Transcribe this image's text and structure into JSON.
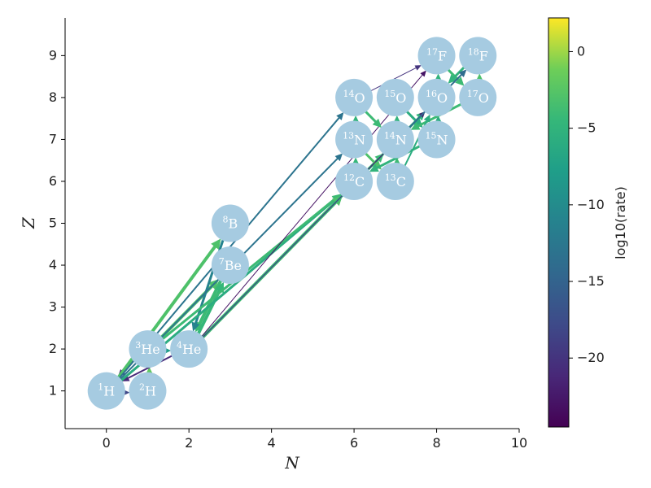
{
  "chart_data": {
    "type": "network",
    "xlabel": "N",
    "ylabel": "Z",
    "xlim": [
      -1,
      10
    ],
    "ylim": [
      0.1,
      9.9
    ],
    "xticks": [
      0,
      2,
      4,
      6,
      8,
      10
    ],
    "yticks": [
      1,
      2,
      3,
      4,
      5,
      6,
      7,
      8,
      9
    ],
    "colorbar": {
      "label": "log10(rate)",
      "range": [
        -24.5,
        2.2
      ],
      "ticks": [
        0,
        -5,
        -10,
        -15,
        -20
      ]
    },
    "node_color": "#a6cbe1",
    "nuclei": [
      {
        "id": "p",
        "A": "1",
        "el": "H",
        "N": 0,
        "Z": 1
      },
      {
        "id": "d",
        "A": "2",
        "el": "H",
        "N": 1,
        "Z": 1
      },
      {
        "id": "he3",
        "A": "3",
        "el": "He",
        "N": 1,
        "Z": 2
      },
      {
        "id": "he4",
        "A": "4",
        "el": "He",
        "N": 2,
        "Z": 2
      },
      {
        "id": "be7",
        "A": "7",
        "el": "Be",
        "N": 3,
        "Z": 4
      },
      {
        "id": "b8",
        "A": "8",
        "el": "B",
        "N": 3,
        "Z": 5
      },
      {
        "id": "c12",
        "A": "12",
        "el": "C",
        "N": 6,
        "Z": 6
      },
      {
        "id": "c13",
        "A": "13",
        "el": "C",
        "N": 7,
        "Z": 6
      },
      {
        "id": "n13",
        "A": "13",
        "el": "N",
        "N": 6,
        "Z": 7
      },
      {
        "id": "n14",
        "A": "14",
        "el": "N",
        "N": 7,
        "Z": 7
      },
      {
        "id": "n15",
        "A": "15",
        "el": "N",
        "N": 8,
        "Z": 7
      },
      {
        "id": "o14",
        "A": "14",
        "el": "O",
        "N": 6,
        "Z": 8
      },
      {
        "id": "o15",
        "A": "15",
        "el": "O",
        "N": 7,
        "Z": 8
      },
      {
        "id": "o16",
        "A": "16",
        "el": "O",
        "N": 8,
        "Z": 8
      },
      {
        "id": "o17",
        "A": "17",
        "el": "O",
        "N": 9,
        "Z": 8
      },
      {
        "id": "f17",
        "A": "17",
        "el": "F",
        "N": 8,
        "Z": 9
      },
      {
        "id": "f18",
        "A": "18",
        "el": "F",
        "N": 9,
        "Z": 9
      }
    ],
    "links": [
      {
        "from": "p",
        "to": "d",
        "rate": -18.0,
        "width": 2
      },
      {
        "from": "d",
        "to": "he3",
        "rate": -2.0,
        "width": 5
      },
      {
        "from": "he3",
        "to": "he4",
        "rate": -8.0,
        "width": 3
      },
      {
        "from": "he3",
        "to": "p",
        "rate": -22.0,
        "width": 2
      },
      {
        "from": "he4",
        "to": "p",
        "rate": -21.0,
        "width": 2
      },
      {
        "from": "he3",
        "to": "be7",
        "rate": -3.0,
        "width": 4
      },
      {
        "from": "p",
        "to": "b8",
        "rate": -3.0,
        "width": 4
      },
      {
        "from": "be7",
        "to": "he4",
        "rate": -4.0,
        "width": 4
      },
      {
        "from": "b8",
        "to": "he4",
        "rate": -11.0,
        "width": 3
      },
      {
        "from": "he4",
        "to": "be7",
        "rate": -4.5,
        "width": 4
      },
      {
        "from": "p",
        "to": "o14",
        "rate": -13.0,
        "width": 2
      },
      {
        "from": "p",
        "to": "n13",
        "rate": -13.0,
        "width": 2
      },
      {
        "from": "p",
        "to": "c12",
        "rate": -6.0,
        "width": 3
      },
      {
        "from": "he3",
        "to": "c12",
        "rate": -4.0,
        "width": 3
      },
      {
        "from": "he4",
        "to": "c12",
        "rate": -3.0,
        "width": 4
      },
      {
        "from": "he4",
        "to": "n14",
        "rate": -4.0,
        "width": 3
      },
      {
        "from": "he4",
        "to": "o16",
        "rate": -5.0,
        "width": 3
      },
      {
        "from": "he4",
        "to": "f18",
        "rate": -20.0,
        "width": 1
      },
      {
        "from": "he4",
        "to": "f17",
        "rate": -23.0,
        "width": 1
      },
      {
        "from": "c12",
        "to": "n13",
        "rate": -4.5,
        "width": 3
      },
      {
        "from": "n13",
        "to": "c13",
        "rate": -3.0,
        "width": 3
      },
      {
        "from": "c13",
        "to": "n14",
        "rate": -4.0,
        "width": 3
      },
      {
        "from": "n14",
        "to": "o15",
        "rate": -5.0,
        "width": 3
      },
      {
        "from": "o15",
        "to": "n15",
        "rate": -6.0,
        "width": 3
      },
      {
        "from": "n15",
        "to": "c12",
        "rate": -5.0,
        "width": 3
      },
      {
        "from": "n15",
        "to": "o16",
        "rate": -6.0,
        "width": 3
      },
      {
        "from": "o16",
        "to": "f17",
        "rate": -5.0,
        "width": 3
      },
      {
        "from": "f17",
        "to": "o17",
        "rate": -4.0,
        "width": 3
      },
      {
        "from": "o17",
        "to": "n14",
        "rate": -4.0,
        "width": 3
      },
      {
        "from": "o17",
        "to": "f18",
        "rate": -3.0,
        "width": 3
      },
      {
        "from": "f18",
        "to": "o16",
        "rate": -5.0,
        "width": 3
      },
      {
        "from": "n13",
        "to": "o14",
        "rate": -5.0,
        "width": 3
      },
      {
        "from": "o14",
        "to": "n14",
        "rate": -4.0,
        "width": 3
      },
      {
        "from": "o14",
        "to": "f17",
        "rate": -20.0,
        "width": 1
      },
      {
        "from": "c12",
        "to": "o16",
        "rate": -22.0,
        "width": 1
      },
      {
        "from": "n14",
        "to": "f18",
        "rate": -14.0,
        "width": 2
      },
      {
        "from": "c13",
        "to": "o16",
        "rate": -6.0,
        "width": 2
      }
    ]
  }
}
